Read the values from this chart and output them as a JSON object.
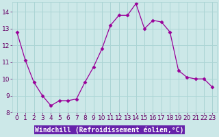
{
  "x": [
    0,
    1,
    2,
    3,
    4,
    5,
    6,
    7,
    8,
    9,
    10,
    11,
    12,
    13,
    14,
    15,
    16,
    17,
    18,
    19,
    20,
    21,
    22,
    23
  ],
  "y": [
    12.8,
    11.1,
    9.8,
    9.0,
    8.4,
    8.7,
    8.7,
    8.8,
    9.8,
    10.7,
    11.8,
    13.2,
    13.8,
    13.8,
    14.5,
    13.0,
    13.5,
    13.4,
    12.8,
    10.5,
    10.1,
    10.0,
    10.0,
    9.5
  ],
  "line_color": "#990099",
  "marker": "D",
  "marker_size": 2.5,
  "bg_color": "#cce8e8",
  "grid_color": "#aad4d4",
  "xlabel": "Windchill (Refroidissement éolien,°C)",
  "xlabel_bg": "#6622aa",
  "xlabel_text_color": "#ffffff",
  "tick_label_color": "#660066",
  "ylim": [
    8,
    14.6
  ],
  "xlim": [
    -0.5,
    23.5
  ],
  "yticks": [
    8,
    9,
    10,
    11,
    12,
    13,
    14
  ],
  "xticks": [
    0,
    1,
    2,
    3,
    4,
    5,
    6,
    7,
    8,
    9,
    10,
    11,
    12,
    13,
    14,
    15,
    16,
    17,
    18,
    19,
    20,
    21,
    22,
    23
  ],
  "tick_fontsize": 6.5,
  "xlabel_fontsize": 7.0
}
